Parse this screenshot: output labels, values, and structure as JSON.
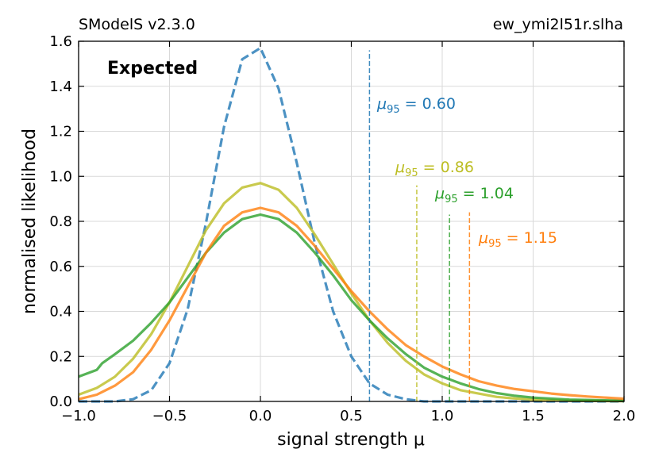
{
  "header": {
    "left_text": "SModelS v2.3.0",
    "right_text": "ew_ymi2l51r.slha"
  },
  "chart_data": {
    "type": "line",
    "title": "",
    "annotation": "Expected",
    "xlabel": "signal strength μ",
    "ylabel": "normalised likelihood",
    "xlim": [
      -1.0,
      2.0
    ],
    "ylim": [
      0.0,
      1.6
    ],
    "xticks": [
      "−1.0",
      "−0.5",
      "0.0",
      "0.5",
      "1.0",
      "1.5",
      "2.0"
    ],
    "yticks": [
      "0.0",
      "0.2",
      "0.4",
      "0.6",
      "0.8",
      "1.0",
      "1.2",
      "1.4",
      "1.6"
    ],
    "grid": true,
    "series": [
      {
        "color": "#1f77b4",
        "style": "dashed",
        "x": [
          -1.0,
          -0.9,
          -0.8,
          -0.7,
          -0.6,
          -0.5,
          -0.4,
          -0.3,
          -0.2,
          -0.1,
          0.0,
          0.1,
          0.2,
          0.3,
          0.4,
          0.5,
          0.6,
          0.7,
          0.8,
          0.9,
          1.0,
          1.1,
          2.0
        ],
        "y": [
          0.0,
          0.0,
          0.0,
          0.01,
          0.05,
          0.17,
          0.41,
          0.79,
          1.22,
          1.52,
          1.57,
          1.39,
          1.06,
          0.7,
          0.4,
          0.2,
          0.08,
          0.03,
          0.01,
          0.0,
          0.0,
          0.0,
          0.0
        ],
        "mu95_label": "0.60",
        "mu95": 0.6,
        "limit_line_top": 1.56
      },
      {
        "color": "#bcbd22",
        "style": "solid",
        "x": [
          -1.0,
          -0.9,
          -0.8,
          -0.7,
          -0.6,
          -0.5,
          -0.4,
          -0.3,
          -0.2,
          -0.1,
          0.0,
          0.1,
          0.2,
          0.3,
          0.4,
          0.5,
          0.6,
          0.7,
          0.8,
          0.9,
          1.0,
          1.1,
          1.2,
          1.3,
          1.4,
          1.5,
          1.7,
          2.0
        ],
        "y": [
          0.03,
          0.06,
          0.11,
          0.19,
          0.3,
          0.44,
          0.6,
          0.76,
          0.88,
          0.95,
          0.97,
          0.94,
          0.86,
          0.74,
          0.61,
          0.48,
          0.36,
          0.26,
          0.18,
          0.12,
          0.08,
          0.05,
          0.035,
          0.02,
          0.013,
          0.008,
          0.003,
          0.001
        ],
        "mu95_label": "0.86",
        "mu95": 0.86,
        "limit_line_top": 0.96
      },
      {
        "color": "#2ca02c",
        "style": "solid",
        "x": [
          -1.0,
          -0.9,
          -0.87,
          -0.8,
          -0.7,
          -0.6,
          -0.5,
          -0.4,
          -0.3,
          -0.2,
          -0.1,
          0.0,
          0.1,
          0.2,
          0.3,
          0.4,
          0.5,
          0.6,
          0.7,
          0.8,
          0.9,
          1.0,
          1.1,
          1.2,
          1.3,
          1.4,
          1.5,
          1.7,
          2.0
        ],
        "y": [
          0.11,
          0.14,
          0.17,
          0.21,
          0.27,
          0.35,
          0.44,
          0.55,
          0.66,
          0.75,
          0.81,
          0.83,
          0.81,
          0.75,
          0.66,
          0.56,
          0.45,
          0.36,
          0.28,
          0.21,
          0.15,
          0.11,
          0.08,
          0.055,
          0.037,
          0.025,
          0.017,
          0.008,
          0.003
        ],
        "mu95_label": "1.04",
        "mu95": 1.04,
        "limit_line_top": 0.83
      },
      {
        "color": "#ff7f0e",
        "style": "solid",
        "x": [
          -1.0,
          -0.9,
          -0.8,
          -0.7,
          -0.6,
          -0.5,
          -0.4,
          -0.3,
          -0.2,
          -0.1,
          0.0,
          0.1,
          0.2,
          0.3,
          0.4,
          0.5,
          0.6,
          0.7,
          0.8,
          0.9,
          1.0,
          1.1,
          1.2,
          1.3,
          1.4,
          1.5,
          1.6,
          1.7,
          1.8,
          2.0
        ],
        "y": [
          0.01,
          0.03,
          0.07,
          0.13,
          0.23,
          0.36,
          0.51,
          0.66,
          0.78,
          0.84,
          0.86,
          0.84,
          0.78,
          0.69,
          0.59,
          0.49,
          0.4,
          0.32,
          0.25,
          0.2,
          0.155,
          0.12,
          0.09,
          0.07,
          0.055,
          0.045,
          0.035,
          0.028,
          0.022,
          0.012
        ],
        "mu95_label": "1.15",
        "mu95": 1.15,
        "limit_line_top": 0.84
      }
    ],
    "mu95_symbol": "μ",
    "mu95_subscript": "95"
  }
}
